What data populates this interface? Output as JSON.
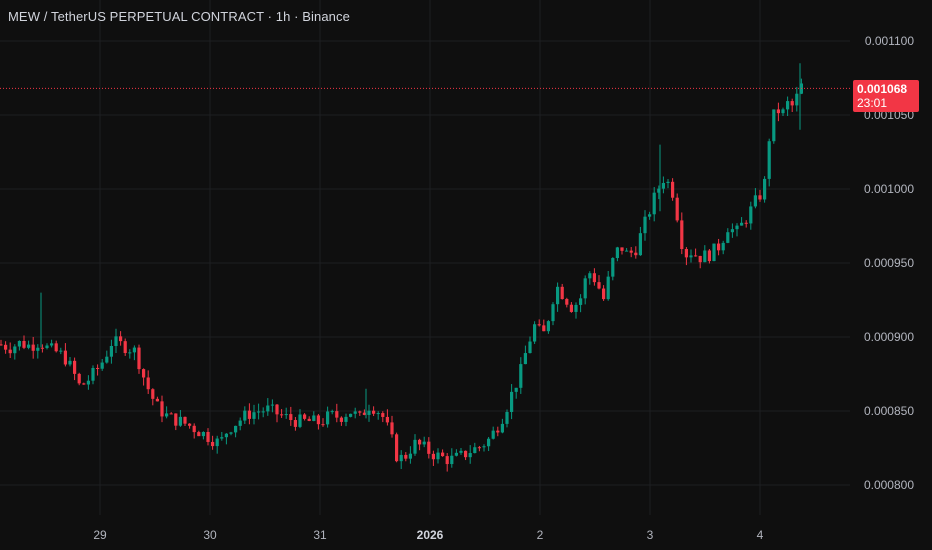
{
  "header": {
    "title": "MEW / TetherUS PERPETUAL CONTRACT · 1h · Binance"
  },
  "last_price": {
    "value": "0.001068",
    "countdown": "23:01",
    "color": "#f23645"
  },
  "colors": {
    "up": "#089981",
    "down": "#f23645",
    "grid": "#1e1f22",
    "background": "#0f0f0f"
  },
  "chart_data": {
    "type": "candlestick",
    "symbol": "MEW / TetherUS PERPETUAL CONTRACT",
    "interval": "1h",
    "exchange": "Binance",
    "y_ticks": [
      "0.001100",
      "0.001050",
      "0.001000",
      "0.000950",
      "0.000900",
      "0.000850",
      "0.000800"
    ],
    "x_ticks": [
      "29",
      "30",
      "31",
      "2026",
      "2",
      "3",
      "4"
    ],
    "ylim": [
      0.000785,
      0.00112
    ],
    "last_price": 0.001068,
    "close_path": [
      [
        0,
        0.000895
      ],
      [
        10,
        0.000893
      ],
      [
        20,
        0.000896
      ],
      [
        30,
        0.000894
      ],
      [
        40,
        0.000897
      ],
      [
        48,
        0.000892
      ],
      [
        56,
        0.00089
      ],
      [
        64,
        0.000887
      ],
      [
        72,
        0.000878
      ],
      [
        80,
        0.000866
      ],
      [
        88,
        0.000871
      ],
      [
        96,
        0.000877
      ],
      [
        104,
        0.000885
      ],
      [
        112,
        0.000897
      ],
      [
        120,
        0.000895
      ],
      [
        128,
        0.000893
      ],
      [
        136,
        0.00089
      ],
      [
        142,
        0.000876
      ],
      [
        150,
        0.000862
      ],
      [
        158,
        0.000852
      ],
      [
        168,
        0.000846
      ],
      [
        180,
        0.000843
      ],
      [
        190,
        0.00084
      ],
      [
        200,
        0.000836
      ],
      [
        210,
        0.000832
      ],
      [
        220,
        0.000828
      ],
      [
        228,
        0.000838
      ],
      [
        238,
        0.000843
      ],
      [
        248,
        0.000848
      ],
      [
        258,
        0.00085
      ],
      [
        268,
        0.000851
      ],
      [
        278,
        0.000848
      ],
      [
        288,
        0.000845
      ],
      [
        298,
        0.000843
      ],
      [
        310,
        0.000843
      ],
      [
        320,
        0.000842
      ],
      [
        330,
        0.000847
      ],
      [
        340,
        0.000846
      ],
      [
        350,
        0.00085
      ],
      [
        360,
        0.000845
      ],
      [
        368,
        0.000854
      ],
      [
        376,
        0.000852
      ],
      [
        384,
        0.000845
      ],
      [
        392,
        0.00083
      ],
      [
        398,
        0.000817
      ],
      [
        406,
        0.00082
      ],
      [
        414,
        0.000828
      ],
      [
        422,
        0.000826
      ],
      [
        430,
        0.000822
      ],
      [
        440,
        0.000819
      ],
      [
        450,
        0.000817
      ],
      [
        460,
        0.000819
      ],
      [
        470,
        0.000823
      ],
      [
        480,
        0.000826
      ],
      [
        488,
        0.00083
      ],
      [
        496,
        0.000838
      ],
      [
        504,
        0.000848
      ],
      [
        512,
        0.000862
      ],
      [
        520,
        0.000875
      ],
      [
        528,
        0.000895
      ],
      [
        536,
        0.00091
      ],
      [
        542,
        0.000898
      ],
      [
        548,
        0.000912
      ],
      [
        556,
        0.000935
      ],
      [
        564,
        0.000928
      ],
      [
        572,
        0.00092
      ],
      [
        580,
        0.000925
      ],
      [
        588,
        0.000945
      ],
      [
        596,
        0.000938
      ],
      [
        604,
        0.000925
      ],
      [
        612,
        0.00095
      ],
      [
        620,
        0.000962
      ],
      [
        628,
        0.000955
      ],
      [
        636,
        0.00096
      ],
      [
        644,
        0.000975
      ],
      [
        652,
        0.00099
      ],
      [
        658,
        0.001
      ],
      [
        664,
        0.001008
      ],
      [
        672,
        0.001
      ],
      [
        678,
        0.00098
      ],
      [
        684,
        0.000955
      ],
      [
        690,
        0.000958
      ],
      [
        700,
        0.000954
      ],
      [
        710,
        0.000956
      ],
      [
        720,
        0.000962
      ],
      [
        728,
        0.000975
      ],
      [
        736,
        0.00097
      ],
      [
        746,
        0.00098
      ],
      [
        756,
        0.000992
      ],
      [
        764,
        0.001
      ],
      [
        770,
        0.00104
      ],
      [
        776,
        0.001055
      ],
      [
        782,
        0.00105
      ],
      [
        788,
        0.001058
      ],
      [
        794,
        0.001055
      ],
      [
        800,
        0.00107
      ],
      [
        806,
        0.001068
      ]
    ],
    "annotations": [
      "0.001068",
      "23:01"
    ]
  }
}
